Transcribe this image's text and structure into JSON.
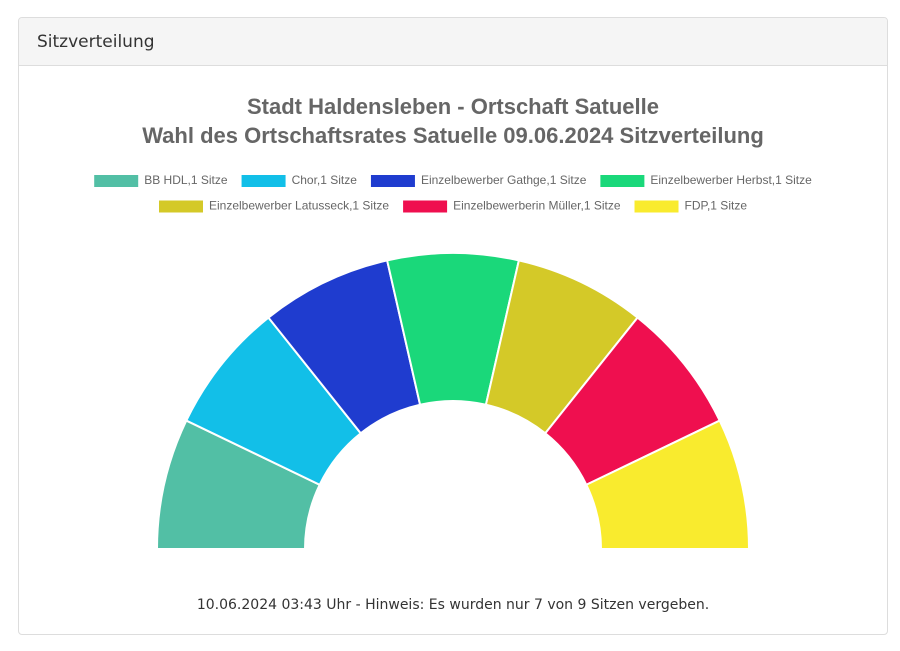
{
  "panel_title": "Sitzverteilung",
  "chart_data": {
    "type": "doughnut",
    "half": true,
    "title": [
      "Stadt Haldensleben - Ortschaft Satuelle",
      "Wahl des Ortschaftsrates Satuelle 09.06.2024 Sitzverteilung"
    ],
    "categories": [
      "BB HDL,1 Sitze",
      "Chor,1 Sitze",
      "Einzelbewerber Gathge,1 Sitze",
      "Einzelbewerber Herbst,1 Sitze",
      "Einzelbewerber Latusseck,1 Sitze",
      "Einzelbewerberin Müller,1 Sitze",
      "FDP,1 Sitze"
    ],
    "values": [
      1,
      1,
      1,
      1,
      1,
      1,
      1
    ],
    "colors": [
      "#52bfa5",
      "#12bfe8",
      "#1f3ccf",
      "#1ad87a",
      "#d4c928",
      "#ef0f4f",
      "#f9eb2e"
    ],
    "legend": "top",
    "footnote": "10.06.2024 03:43 Uhr - Hinweis: Es wurden nur 7 von 9 Sitzen vergeben."
  }
}
